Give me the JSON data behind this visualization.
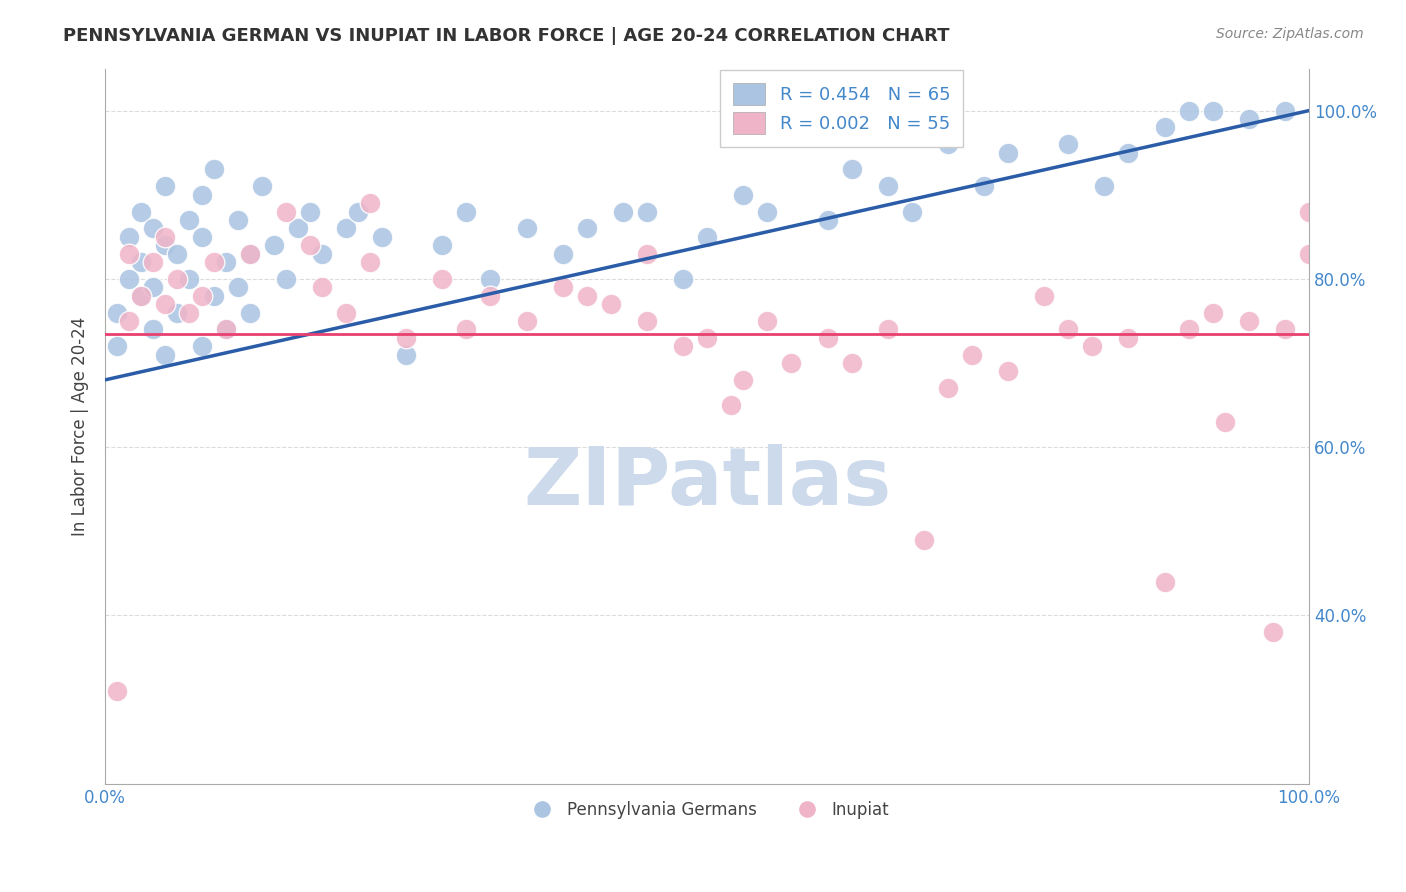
{
  "title": "PENNSYLVANIA GERMAN VS INUPIAT IN LABOR FORCE | AGE 20-24 CORRELATION CHART",
  "source_text": "Source: ZipAtlas.com",
  "ylabel": "In Labor Force | Age 20-24",
  "xlim": [
    0,
    100
  ],
  "ylim": [
    20,
    105
  ],
  "yticks": [
    40,
    60,
    80,
    100
  ],
  "ytick_labels": [
    "40.0%",
    "60.0%",
    "80.0%",
    "100.0%"
  ],
  "xtick_labels": [
    "0.0%",
    "100.0%"
  ],
  "legend_r1": "R = 0.454",
  "legend_n1": "N = 65",
  "legend_r2": "R = 0.002",
  "legend_n2": "N = 55",
  "blue_color": "#aac4e2",
  "pink_color": "#f0b4c8",
  "trendline_blue_color": "#2a5ca8",
  "trendline_pink_color": "#e84070",
  "watermark_color": "#ccdaec",
  "background_color": "#ffffff",
  "grid_color": "#cccccc",
  "title_color": "#333333",
  "source_color": "#888888",
  "tick_color": "#4488cc",
  "legend_label1": "Pennsylvania Germans",
  "legend_label2": "Inupiat",
  "blue_trendline_y_start": 68,
  "blue_trendline_y_end": 100,
  "pink_trendline_y": 73.5,
  "blue_scatter_x": [
    1,
    1,
    2,
    2,
    3,
    3,
    3,
    4,
    4,
    4,
    5,
    5,
    5,
    6,
    6,
    7,
    7,
    8,
    8,
    8,
    9,
    9,
    10,
    10,
    11,
    11,
    12,
    12,
    13,
    14,
    15,
    16,
    17,
    18,
    20,
    21,
    23,
    25,
    28,
    30,
    32,
    35,
    38,
    40,
    43,
    45,
    48,
    50,
    53,
    55,
    60,
    62,
    65,
    67,
    70,
    73,
    75,
    80,
    83,
    85,
    88,
    90,
    92,
    95,
    98
  ],
  "blue_scatter_y": [
    72,
    76,
    80,
    85,
    78,
    82,
    88,
    74,
    79,
    86,
    71,
    84,
    91,
    76,
    83,
    80,
    87,
    72,
    85,
    90,
    78,
    93,
    74,
    82,
    87,
    79,
    83,
    76,
    91,
    84,
    80,
    86,
    88,
    83,
    86,
    88,
    85,
    71,
    84,
    88,
    80,
    86,
    83,
    86,
    88,
    88,
    80,
    85,
    90,
    88,
    87,
    93,
    91,
    88,
    96,
    91,
    95,
    96,
    91,
    95,
    98,
    100,
    100,
    99,
    100
  ],
  "pink_scatter_x": [
    1,
    2,
    2,
    3,
    4,
    5,
    5,
    6,
    7,
    8,
    9,
    10,
    12,
    15,
    17,
    18,
    20,
    22,
    22,
    25,
    28,
    30,
    32,
    35,
    38,
    40,
    42,
    45,
    45,
    48,
    50,
    52,
    53,
    55,
    57,
    60,
    62,
    65,
    68,
    70,
    72,
    75,
    78,
    80,
    82,
    85,
    88,
    90,
    92,
    93,
    95,
    97,
    98,
    100,
    100
  ],
  "pink_scatter_y": [
    31,
    75,
    83,
    78,
    82,
    85,
    77,
    80,
    76,
    78,
    82,
    74,
    83,
    88,
    84,
    79,
    76,
    82,
    89,
    73,
    80,
    74,
    78,
    75,
    79,
    78,
    77,
    75,
    83,
    72,
    73,
    65,
    68,
    75,
    70,
    73,
    70,
    74,
    49,
    67,
    71,
    69,
    78,
    74,
    72,
    73,
    44,
    74,
    76,
    63,
    75,
    38,
    74,
    83,
    88
  ]
}
